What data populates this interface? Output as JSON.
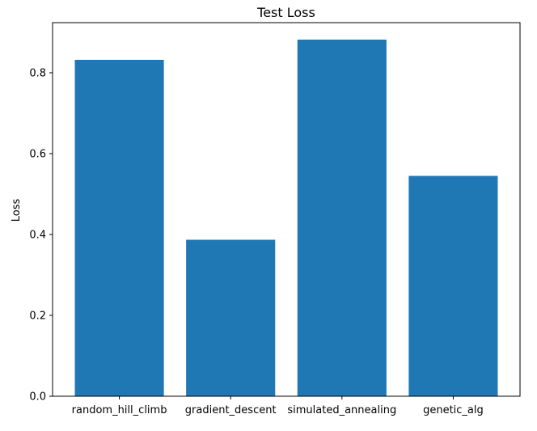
{
  "chart_data": {
    "type": "bar",
    "title": "Test Loss",
    "xlabel": "",
    "ylabel": "Loss",
    "categories": [
      "random_hill_climb",
      "gradient_descent",
      "simulated_annealing",
      "genetic_alg"
    ],
    "values": [
      0.832,
      0.387,
      0.882,
      0.545
    ],
    "ylim": [
      0,
      0.924
    ],
    "yticks": [
      0.0,
      0.2,
      0.4,
      0.6,
      0.8
    ],
    "ytick_labels": [
      "0.0",
      "0.2",
      "0.4",
      "0.6",
      "0.8"
    ],
    "bar_color": "#1f77b4",
    "grid": false,
    "legend": "none"
  }
}
